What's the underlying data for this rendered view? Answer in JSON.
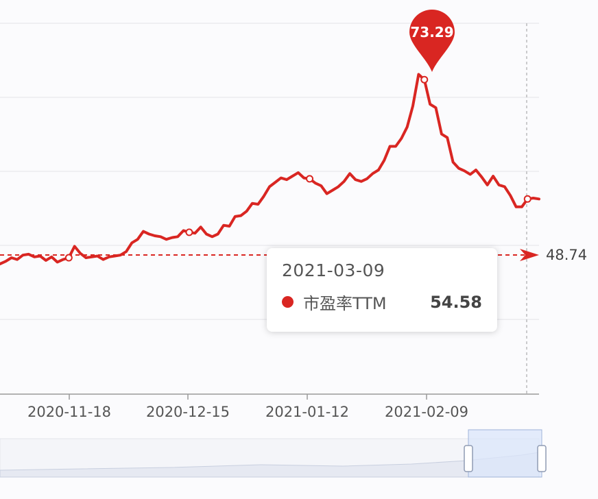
{
  "colors": {
    "series": "#d92622",
    "axis": "#9a9a9a",
    "grid": "#e3e3e8",
    "slider_fill": "#dbe6fa",
    "slider_border": "#9fb3d9"
  },
  "chart_data": {
    "type": "line",
    "x_tick_labels": [
      "2020-11-18",
      "2020-12-15",
      "2021-01-12",
      "2021-02-09"
    ],
    "series": [
      {
        "name": "市盈率TTM",
        "values": [
          48.2,
          48.5,
          48.9,
          48.7,
          49.2,
          49.3,
          49.0,
          49.1,
          48.6,
          49.0,
          48.4,
          48.7,
          48.9,
          50.2,
          49.4,
          48.9,
          49.0,
          49.1,
          48.7,
          49.0,
          49.1,
          49.2,
          49.6,
          50.6,
          51.0,
          51.9,
          51.6,
          51.4,
          51.3,
          51.0,
          51.2,
          51.3,
          52.0,
          51.8,
          51.7,
          52.4,
          51.6,
          51.3,
          51.6,
          52.6,
          52.5,
          53.6,
          53.7,
          54.2,
          55.1,
          55.0,
          55.9,
          57.0,
          57.5,
          58.0,
          57.8,
          58.2,
          58.6,
          58.0,
          57.9,
          57.4,
          57.1,
          56.2,
          56.6,
          57.0,
          57.6,
          58.5,
          57.8,
          57.6,
          57.9,
          58.5,
          58.9,
          60.0,
          61.6,
          61.6,
          62.5,
          63.8,
          66.2,
          69.8,
          69.2,
          66.4,
          66.0,
          63.0,
          62.6,
          59.8,
          59.1,
          58.8,
          58.4,
          58.9,
          58.1,
          57.2,
          58.2,
          57.2,
          57.0,
          56.0,
          54.7,
          54.7,
          55.6,
          55.7,
          55.6
        ]
      }
    ],
    "markers": [
      {
        "type": "max",
        "label": "73.29"
      },
      {
        "type": "average",
        "label": "48.74",
        "value": 48.74
      }
    ],
    "y_range": [
      38,
      74
    ],
    "grid": true,
    "tooltip": {
      "date": "2021-03-09",
      "series_name": "市盈率TTM",
      "value": "54.58"
    }
  }
}
